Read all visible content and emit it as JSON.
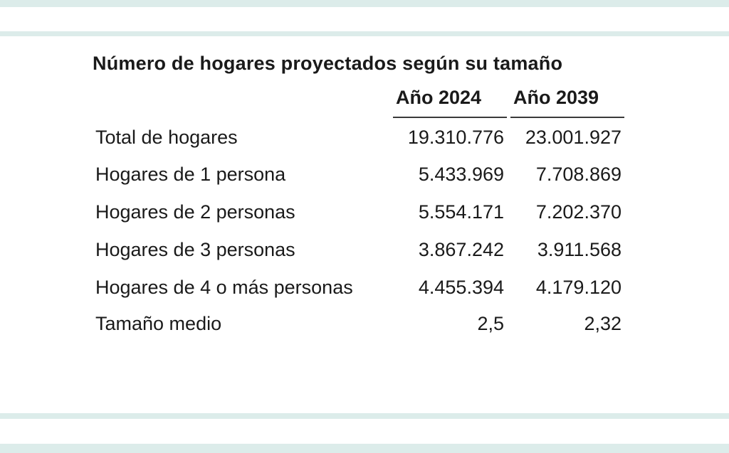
{
  "table": {
    "title": "Número de hogares proyectados según su tamaño",
    "columns": [
      "Año 2024",
      "Año 2039"
    ],
    "rows": [
      {
        "label": "Total de hogares",
        "values": [
          "19.310.776",
          "23.001.927"
        ]
      },
      {
        "label": "Hogares de 1 persona",
        "values": [
          "5.433.969",
          "7.708.869"
        ]
      },
      {
        "label": "Hogares de 2 personas",
        "values": [
          "5.554.171",
          "7.202.370"
        ]
      },
      {
        "label": "Hogares de 3 personas",
        "values": [
          "3.867.242",
          "3.911.568"
        ]
      },
      {
        "label": "Hogares de 4 o más personas",
        "values": [
          "4.455.394",
          "4.179.120"
        ]
      },
      {
        "label": "Tamaño medio",
        "values": [
          "2,5",
          "2,32"
        ]
      }
    ]
  }
}
